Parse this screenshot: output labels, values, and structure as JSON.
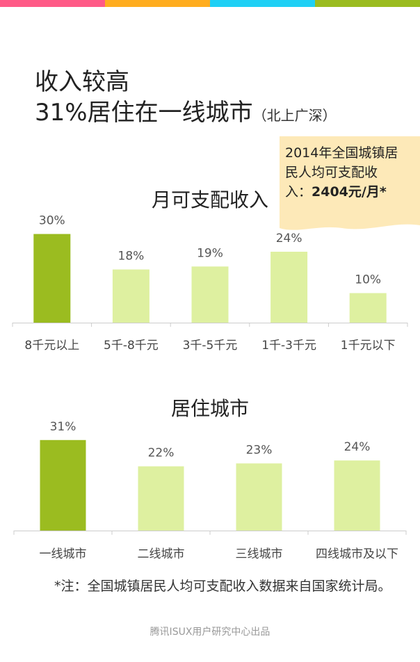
{
  "topbar_colors": [
    "#ff5a87",
    "#ffad1f",
    "#1fd0f5",
    "#9bbc20"
  ],
  "headline": {
    "line1": "收入较高",
    "line2": "31%居住在一线城市",
    "line2_small": "（北上广深）"
  },
  "note": {
    "line1": "2014年全国城镇居",
    "line2": "民人均可支配收",
    "line3_prefix": "入：",
    "line3_bold": "2404元/月*"
  },
  "colors": {
    "highlight_bar": "#9bbc20",
    "bar": "#def0a0",
    "axis": "#cccccc",
    "note_bg": "#fde9b8"
  },
  "chart_data": [
    {
      "type": "bar",
      "title": "月可支配收入",
      "categories": [
        "8千元以上",
        "5千-8千元",
        "3千-5千元",
        "1千-3千元",
        "1千元以下"
      ],
      "values": [
        30,
        18,
        19,
        24,
        10
      ],
      "value_labels": [
        "30%",
        "18%",
        "19%",
        "24%",
        "10%"
      ],
      "highlight_index": 0,
      "xlabel": "",
      "ylabel": "",
      "grid": false
    },
    {
      "type": "bar",
      "title": "居住城市",
      "categories": [
        "一线城市",
        "二线城市",
        "三线城市",
        "四线城市及以下"
      ],
      "values": [
        31,
        22,
        23,
        24
      ],
      "value_labels": [
        "31%",
        "22%",
        "23%",
        "24%"
      ],
      "highlight_index": 0,
      "xlabel": "",
      "ylabel": "",
      "grid": false
    }
  ],
  "footnote": "*注：全国城镇居民人均可支配收入数据来自国家统计局。",
  "credit": "腾讯ISUX用户研究中心出品"
}
